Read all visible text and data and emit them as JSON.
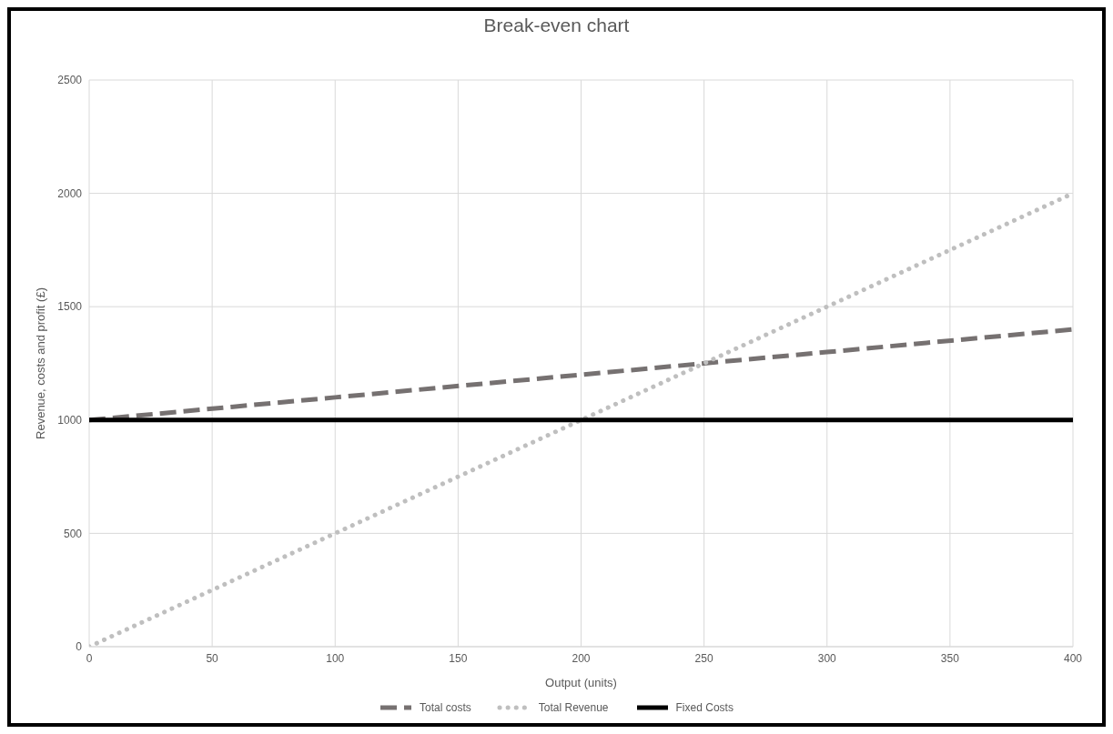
{
  "chart_data": {
    "type": "line",
    "title": "Break-even chart",
    "xlabel": "Output (units)",
    "ylabel": "Revenue, costs and profit (£)",
    "x": [
      0,
      100,
      200,
      300,
      400
    ],
    "series": [
      {
        "name": "Total costs",
        "color": "#767171",
        "values": [
          1000,
          1100,
          1200,
          1300,
          1400
        ],
        "line_style": "dashed"
      },
      {
        "name": "Total Revenue",
        "color": "#bfbfbf",
        "values": [
          0,
          500,
          1000,
          1500,
          2000
        ],
        "line_style": "dotted"
      },
      {
        "name": "Fixed Costs",
        "color": "#000000",
        "values": [
          1000,
          1000,
          1000,
          1000,
          1000
        ],
        "line_style": "solid"
      }
    ],
    "xlim": [
      0,
      400
    ],
    "xticks": [
      0,
      50,
      100,
      150,
      200,
      250,
      300,
      350,
      400
    ],
    "ylim": [
      0,
      2500
    ],
    "yticks": [
      0,
      500,
      1000,
      1500,
      2000,
      2500
    ],
    "grid": true,
    "legend": "bottom",
    "marker": "none"
  }
}
